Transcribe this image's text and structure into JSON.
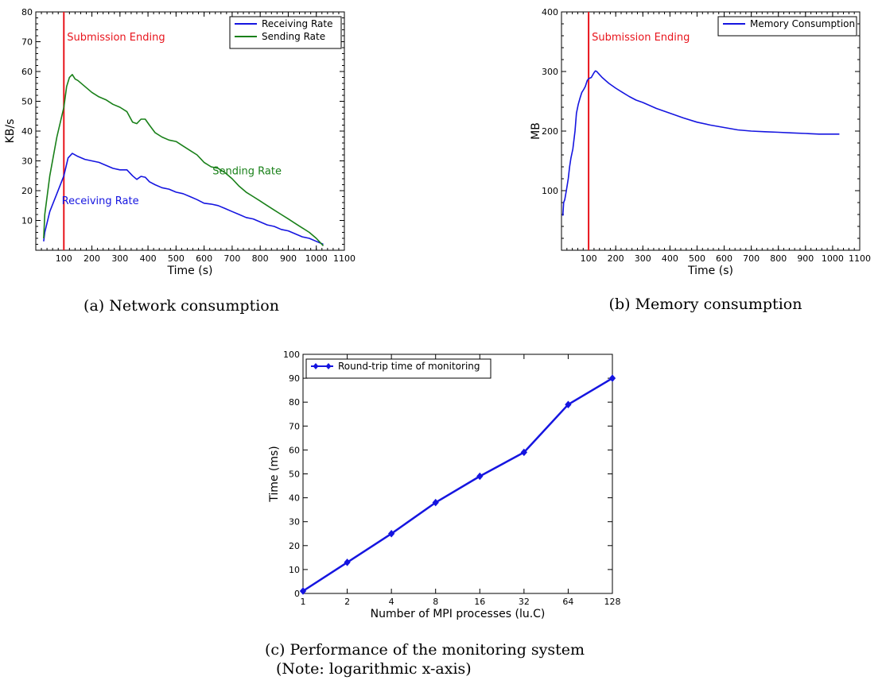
{
  "chart_data": [
    {
      "id": "a",
      "type": "line",
      "caption": "(a) Network consumption",
      "xlabel": "Time (s)",
      "ylabel": "KB/s",
      "xlim": [
        0,
        1100
      ],
      "ylim": [
        0,
        80
      ],
      "xticks": [
        100,
        200,
        300,
        400,
        500,
        600,
        700,
        800,
        900,
        1000,
        1100
      ],
      "yticks": [
        10,
        20,
        30,
        40,
        50,
        60,
        70,
        80
      ],
      "legend_position": "top-right",
      "vline": {
        "x": 100,
        "label": "Submission Ending",
        "color": "#e8141c"
      },
      "series": [
        {
          "name": "Receiving Rate",
          "color": "#1515e0",
          "annotation": {
            "text": "Receiving Rate",
            "x": 230,
            "y": 15.5
          },
          "x": [
            28,
            32,
            50,
            75,
            100,
            115,
            130,
            150,
            175,
            200,
            225,
            250,
            275,
            300,
            325,
            345,
            360,
            375,
            390,
            405,
            425,
            450,
            475,
            500,
            525,
            550,
            575,
            600,
            625,
            650,
            675,
            700,
            725,
            750,
            775,
            800,
            825,
            850,
            875,
            900,
            925,
            950,
            975,
            1000,
            1025
          ],
          "y": [
            3,
            6,
            13,
            19,
            25,
            31,
            32.5,
            31.5,
            30.5,
            30,
            29.5,
            28.5,
            27.5,
            27,
            27,
            25,
            23.8,
            24.8,
            24.5,
            23,
            22,
            21,
            20.5,
            19.5,
            19,
            18,
            17,
            15.8,
            15.5,
            15,
            14,
            13,
            12,
            11,
            10.5,
            9.5,
            8.5,
            8,
            7,
            6.5,
            5.5,
            4.5,
            4,
            3,
            2
          ]
        },
        {
          "name": "Sending Rate",
          "color": "#198019",
          "annotation": {
            "text": "Sending Rate",
            "x": 753,
            "y": 25.5
          },
          "x": [
            28,
            32,
            50,
            75,
            100,
            110,
            120,
            130,
            140,
            150,
            175,
            200,
            225,
            250,
            275,
            300,
            325,
            345,
            360,
            375,
            390,
            405,
            425,
            450,
            475,
            500,
            525,
            550,
            575,
            600,
            625,
            650,
            675,
            700,
            725,
            750,
            775,
            800,
            825,
            850,
            875,
            900,
            925,
            950,
            975,
            1000,
            1025
          ],
          "y": [
            4,
            12,
            25,
            38,
            48,
            55,
            58,
            59,
            57.5,
            57,
            55,
            53,
            51.5,
            50.5,
            49,
            48,
            46.5,
            43,
            42.5,
            44,
            44,
            42,
            39.5,
            38,
            37,
            36.5,
            35,
            33.5,
            32,
            29.5,
            28,
            27.5,
            26,
            24,
            21.5,
            19.5,
            18,
            16.5,
            15,
            13.5,
            12,
            10.5,
            9,
            7.5,
            6,
            4,
            1.5
          ]
        }
      ]
    },
    {
      "id": "b",
      "type": "line",
      "caption": "(b) Memory consumption",
      "xlabel": "Time (s)",
      "ylabel": "MB",
      "xlim": [
        0,
        1100
      ],
      "ylim": [
        0,
        400
      ],
      "xticks": [
        100,
        200,
        300,
        400,
        500,
        600,
        700,
        800,
        900,
        1000,
        1100
      ],
      "yticks": [
        100,
        200,
        300,
        400
      ],
      "legend_position": "top-right",
      "vline": {
        "x": 100,
        "label": "Submission Ending",
        "color": "#e8141c"
      },
      "series": [
        {
          "name": "Memory Consumption",
          "color": "#1515e0",
          "x": [
            5,
            8,
            12,
            18,
            25,
            30,
            35,
            42,
            50,
            55,
            62,
            68,
            75,
            82,
            88,
            95,
            100,
            110,
            120,
            125,
            130,
            140,
            150,
            175,
            200,
            225,
            250,
            275,
            300,
            350,
            400,
            450,
            500,
            550,
            600,
            650,
            700,
            750,
            800,
            850,
            900,
            950,
            1000,
            1025
          ],
          "y": [
            58,
            80,
            85,
            100,
            120,
            140,
            155,
            170,
            200,
            230,
            245,
            255,
            265,
            270,
            275,
            285,
            288,
            290,
            298,
            301,
            300,
            295,
            290,
            280,
            272,
            265,
            258,
            252,
            248,
            238,
            230,
            222,
            215,
            210,
            206,
            202,
            200,
            199,
            198,
            197,
            196,
            195,
            195,
            195
          ]
        }
      ]
    },
    {
      "id": "c",
      "type": "line",
      "caption_lines": [
        "(c) Performance of the monitoring system",
        "(Note: logarithmic x-axis)"
      ],
      "xlabel": "Number of MPI processes (lu.C)",
      "ylabel": "Time (ms)",
      "xscale": "log2",
      "xlim": [
        1,
        128
      ],
      "ylim": [
        0,
        100
      ],
      "xticks": [
        1,
        2,
        4,
        8,
        16,
        32,
        64,
        128
      ],
      "yticks": [
        0,
        10,
        20,
        30,
        40,
        50,
        60,
        70,
        80,
        90,
        100
      ],
      "legend_position": "top-left",
      "series": [
        {
          "name": "Round-trip time of monitoring",
          "color": "#1515e0",
          "marker": "diamond",
          "x": [
            1,
            2,
            4,
            8,
            16,
            32,
            64,
            128
          ],
          "y": [
            1,
            13,
            25,
            38,
            49,
            59,
            79,
            90
          ]
        }
      ]
    }
  ]
}
